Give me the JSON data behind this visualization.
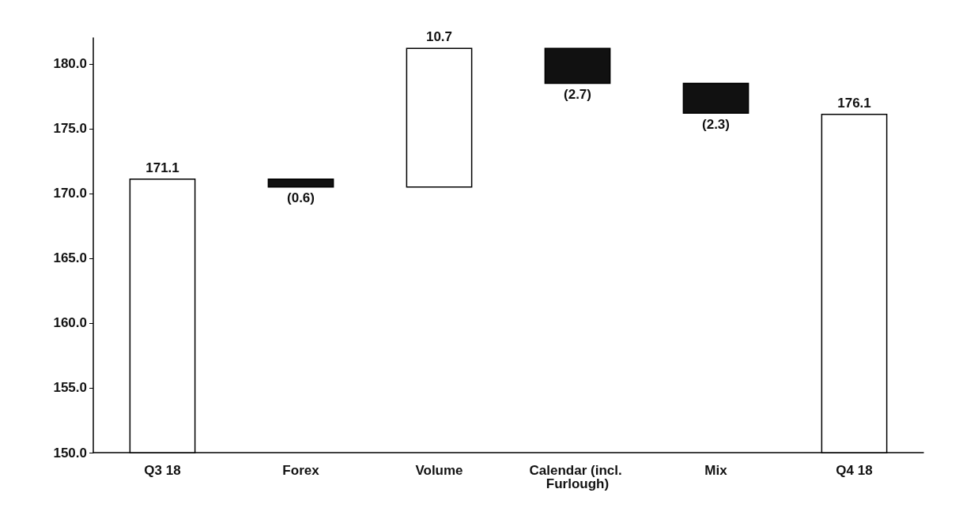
{
  "chart_data": {
    "type": "bar",
    "categories": [
      "Q3 18",
      "Forex",
      "Volume",
      "Calendar (incl. Furlough)",
      "Mix",
      "Q4 18"
    ],
    "values": [
      171.1,
      -0.6,
      10.7,
      -2.7,
      -2.3,
      176.1
    ],
    "base": [
      null,
      171.1,
      170.5,
      181.2,
      178.5,
      null
    ],
    "colors": [
      "#ffffff",
      "#111111",
      "#ffffff",
      "#111111",
      "#111111",
      "#ffffff"
    ],
    "value_labels": [
      "171.1",
      "(0.6)",
      "10.7",
      "(2.7)",
      "(2.3)",
      "176.1"
    ],
    "ylim": [
      150,
      182
    ],
    "yticks": [
      {
        "value": 150,
        "label": "150.0"
      },
      {
        "value": 155,
        "label": "155.0"
      },
      {
        "value": 160,
        "label": "160.0"
      },
      {
        "value": 165,
        "label": "165.0"
      },
      {
        "value": 170,
        "label": "170.0"
      },
      {
        "value": 175,
        "label": "175.0"
      },
      {
        "value": 180,
        "label": "180.0"
      }
    ],
    "grid": false
  }
}
